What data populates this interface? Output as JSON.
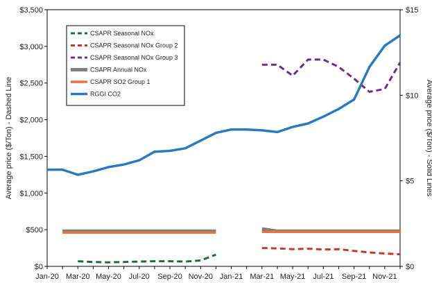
{
  "chart_data": {
    "type": "line",
    "x": [
      "Jan-20",
      "Feb-20",
      "Mar-20",
      "Apr-20",
      "May-20",
      "Jun-20",
      "Jul-20",
      "Aug-20",
      "Sep-20",
      "Oct-20",
      "Nov-20",
      "Dec-20",
      "Jan-21",
      "Feb-21",
      "Mar-21",
      "Apr-21",
      "May-21",
      "Jun-21",
      "Jul-21",
      "Aug-21",
      "Sep-21",
      "Oct-21",
      "Nov-21",
      "Dec-21"
    ],
    "x_tick_labels": [
      "Jan-20",
      "Mar-20",
      "May-20",
      "Jul-20",
      "Sep-20",
      "Nov-20",
      "Jan-21",
      "Mar-21",
      "May-21",
      "Jul-21",
      "Sep-21",
      "Nov-21"
    ],
    "ylabel_left": "Average price ($/Ton) - Dashed Line",
    "ylabel_right": "Average price ($/Ton) - Solid Lines",
    "ylim_left": [
      0,
      3500
    ],
    "ylim_right": [
      0,
      15
    ],
    "y_ticks_left": [
      "$0",
      "$500",
      "$1,000",
      "$1,500",
      "$2,000",
      "$2,500",
      "$3,000",
      "$3,500"
    ],
    "y_ticks_right": [
      "$0",
      "$5",
      "$10",
      "$15"
    ],
    "legend_position": "top-left",
    "grid": false,
    "series": [
      {
        "name": "CSAPR Seasonal NOx",
        "axis": "left",
        "style": "dashed",
        "color": "#1e6b3a",
        "values": [
          null,
          null,
          70,
          60,
          55,
          60,
          65,
          70,
          70,
          65,
          80,
          160,
          null,
          null,
          null,
          null,
          null,
          null,
          null,
          null,
          null,
          null,
          null,
          null
        ]
      },
      {
        "name": "CSAPR Seasonal NOx Group 2",
        "axis": "left",
        "style": "dashed",
        "color": "#c0392b",
        "values": [
          null,
          null,
          null,
          null,
          null,
          null,
          null,
          null,
          null,
          null,
          null,
          null,
          null,
          null,
          250,
          245,
          235,
          240,
          230,
          235,
          210,
          190,
          175,
          165
        ]
      },
      {
        "name": "CSAPR Seasonal NOx Group 3",
        "axis": "left",
        "style": "dashed",
        "color": "#6b2d8b",
        "values": [
          null,
          null,
          null,
          null,
          null,
          null,
          null,
          null,
          null,
          null,
          null,
          null,
          null,
          null,
          2750,
          2750,
          2600,
          2820,
          2820,
          2720,
          2560,
          2380,
          2420,
          2780
        ]
      },
      {
        "name": "CSAPR Annual NOx",
        "axis": "left",
        "style": "solid",
        "color": "#7f7f7f",
        "values": [
          null,
          480,
          480,
          480,
          480,
          480,
          480,
          480,
          480,
          480,
          480,
          480,
          null,
          null,
          510,
          480,
          480,
          480,
          480,
          480,
          480,
          480,
          480,
          480
        ]
      },
      {
        "name": "CSAPR SO2 Group 1",
        "axis": "left",
        "style": "solid",
        "color": "#e8743b",
        "values": [
          null,
          460,
          460,
          460,
          460,
          460,
          460,
          460,
          460,
          460,
          460,
          460,
          null,
          null,
          470,
          470,
          470,
          470,
          470,
          470,
          470,
          470,
          470,
          470
        ]
      },
      {
        "name": "RGGI CO2",
        "axis": "right",
        "style": "solid",
        "color": "#2a7ac0",
        "values": [
          5.65,
          5.65,
          5.35,
          5.55,
          5.8,
          5.95,
          6.2,
          6.7,
          6.75,
          6.9,
          7.35,
          7.8,
          8.0,
          8.0,
          7.95,
          7.85,
          8.15,
          8.35,
          8.75,
          9.2,
          9.75,
          11.65,
          12.9,
          13.5
        ]
      }
    ]
  }
}
